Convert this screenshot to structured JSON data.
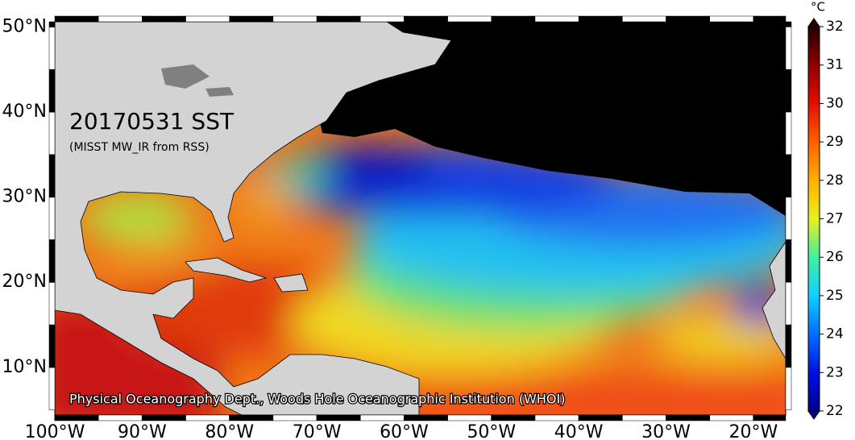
{
  "map": {
    "title": "20170531 SST",
    "subtitle": "(MISST MW_IR from RSS)",
    "credit": "Physical Oceanography Dept., Woods Hole Oceanographic Institution (WHOI)",
    "xlim": [
      -100,
      -16.3
    ],
    "ylim": [
      4.4,
      50.6
    ],
    "lat_ticks": [
      {
        "value": 50,
        "label": "50°N"
      },
      {
        "value": 40,
        "label": "40°N"
      },
      {
        "value": 30,
        "label": "30°N"
      },
      {
        "value": 20,
        "label": "20°N"
      },
      {
        "value": 10,
        "label": "10°N"
      }
    ],
    "lon_ticks": [
      {
        "value": -100,
        "label": "100°W"
      },
      {
        "value": -90,
        "label": "90°W"
      },
      {
        "value": -80,
        "label": "80°W"
      },
      {
        "value": -70,
        "label": "70°W"
      },
      {
        "value": -60,
        "label": "60°W"
      },
      {
        "value": -50,
        "label": "50°W"
      },
      {
        "value": -40,
        "label": "40°W"
      },
      {
        "value": -30,
        "label": "30°W"
      },
      {
        "value": -20,
        "label": "20°W"
      }
    ]
  },
  "colorbar": {
    "unit": "°C",
    "range": [
      22,
      32
    ],
    "ticks": [
      22,
      23,
      24,
      25,
      26,
      27,
      28,
      29,
      30,
      31,
      32
    ],
    "colors": [
      "#00008c",
      "#0010e0",
      "#0070ff",
      "#10d0ff",
      "#40f0a0",
      "#e8f020",
      "#ffb000",
      "#ff6000",
      "#e01000",
      "#900000",
      "#200000"
    ]
  }
}
